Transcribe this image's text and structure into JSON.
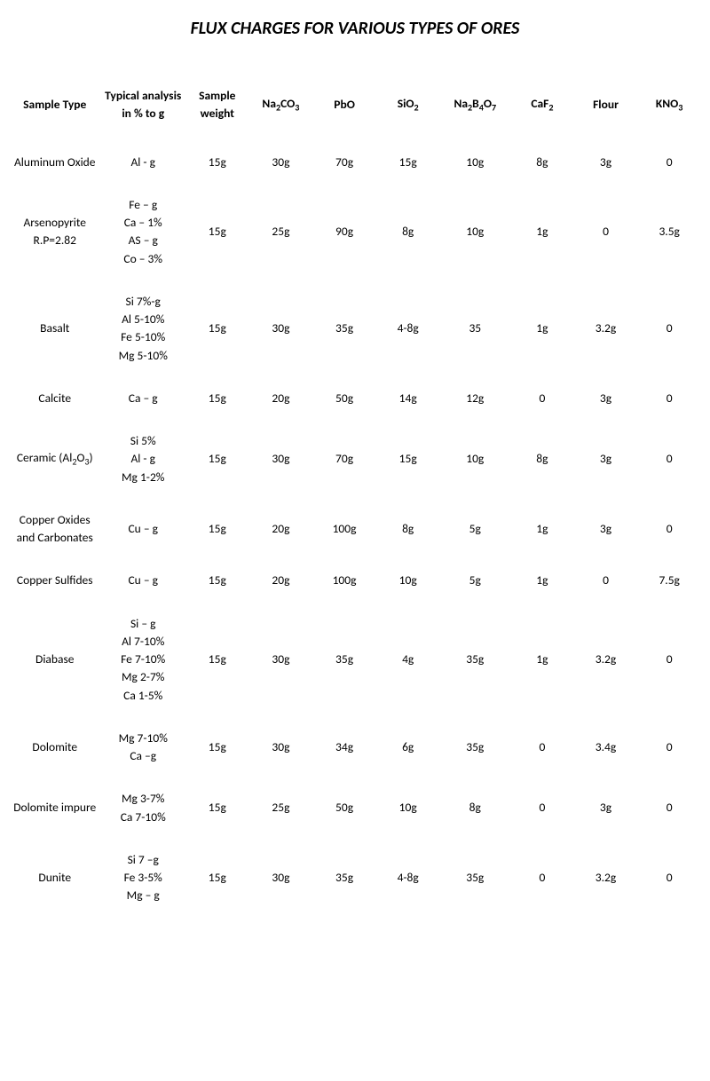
{
  "title": "FLUX CHARGES FOR VARIOUS TYPES OF ORES",
  "columns": [
    {
      "key": "sample_type",
      "label": "Sample Type",
      "class": "col-sample"
    },
    {
      "key": "analysis",
      "label": "Typical analysis in % to g",
      "class": "col-analysis"
    },
    {
      "key": "weight",
      "label": "Sample weight",
      "class": "col-weight"
    },
    {
      "key": "na2co3",
      "label": "Na<sub>2</sub>CO<sub>3</sub>",
      "class": "col-comp"
    },
    {
      "key": "pbo",
      "label": "PbO",
      "class": "col-comp"
    },
    {
      "key": "sio2",
      "label": "SiO<sub>2</sub>",
      "class": "col-comp"
    },
    {
      "key": "na2b4o7",
      "label": "Na<sub>2</sub>B<sub>4</sub>O<sub>7</sub>",
      "class": "col-comp-wide"
    },
    {
      "key": "caf2",
      "label": "CaF<sub>2</sub>",
      "class": "col-comp"
    },
    {
      "key": "flour",
      "label": "Flour",
      "class": "col-comp"
    },
    {
      "key": "kno3",
      "label": "KNO<sub>3</sub>",
      "class": "col-comp"
    }
  ],
  "rows": [
    {
      "sample_type": "Aluminum Oxide",
      "analysis": [
        "Al - g"
      ],
      "weight": "15g",
      "na2co3": "30g",
      "pbo": "70g",
      "sio2": "15g",
      "na2b4o7": "10g",
      "caf2": "8g",
      "flour": "3g",
      "kno3": "0"
    },
    {
      "sample_type": "Arsenopyrite R.P=2.82",
      "analysis": [
        "Fe – g",
        "Ca – 1%",
        "AS – g",
        "Co – 3%"
      ],
      "weight": "15g",
      "na2co3": "25g",
      "pbo": "90g",
      "sio2": "8g",
      "na2b4o7": "10g",
      "caf2": "1g",
      "flour": "0",
      "kno3": "3.5g"
    },
    {
      "sample_type": "Basalt",
      "analysis": [
        "Si  7%-g",
        "Al  5-10%",
        "Fe 5-10%",
        "Mg 5-10%"
      ],
      "weight": "15g",
      "na2co3": "30g",
      "pbo": "35g",
      "sio2": "4-8g",
      "na2b4o7": "35",
      "caf2": "1g",
      "flour": "3.2g",
      "kno3": "0"
    },
    {
      "sample_type": "Calcite",
      "analysis": [
        "Ca – g"
      ],
      "weight": "15g",
      "na2co3": "20g",
      "pbo": "50g",
      "sio2": "14g",
      "na2b4o7": "12g",
      "caf2": "0",
      "flour": "3g",
      "kno3": "0"
    },
    {
      "sample_type": "Ceramic (Al<sub>2</sub>O<sub>3</sub>)",
      "analysis": [
        "Si  5%",
        "Al - g",
        "Mg 1-2%"
      ],
      "weight": "15g",
      "na2co3": "30g",
      "pbo": "70g",
      "sio2": "15g",
      "na2b4o7": "10g",
      "caf2": "8g",
      "flour": "3g",
      "kno3": "0"
    },
    {
      "sample_type": "Copper Oxides and Carbonates",
      "analysis": [
        "Cu – g"
      ],
      "weight": "15g",
      "na2co3": "20g",
      "pbo": "100g",
      "sio2": "8g",
      "na2b4o7": "5g",
      "caf2": "1g",
      "flour": "3g",
      "kno3": "0"
    },
    {
      "sample_type": "Copper Sulfides",
      "analysis": [
        "Cu – g"
      ],
      "weight": "15g",
      "na2co3": "20g",
      "pbo": "100g",
      "sio2": "10g",
      "na2b4o7": "5g",
      "caf2": "1g",
      "flour": "0",
      "kno3": "7.5g"
    },
    {
      "sample_type": "Diabase",
      "analysis": [
        "Si – g",
        "Al 7-10%",
        "Fe 7-10%",
        "Mg 2-7%",
        "Ca  1-5%"
      ],
      "weight": "15g",
      "na2co3": "30g",
      "pbo": "35g",
      "sio2": "4g",
      "na2b4o7": "35g",
      "caf2": "1g",
      "flour": "3.2g",
      "kno3": "0"
    },
    {
      "sample_type": "Dolomite",
      "analysis": [
        "Mg 7-10%",
        "Ca –g"
      ],
      "weight": "15g",
      "na2co3": "30g",
      "pbo": "34g",
      "sio2": "6g",
      "na2b4o7": "35g",
      "caf2": "0",
      "flour": "3.4g",
      "kno3": "0"
    },
    {
      "sample_type": "Dolomite impure",
      "analysis": [
        "Mg 3-7%",
        "Ca 7-10%"
      ],
      "weight": "15g",
      "na2co3": "25g",
      "pbo": "50g",
      "sio2": "10g",
      "na2b4o7": "8g",
      "caf2": "0",
      "flour": "3g",
      "kno3": "0"
    },
    {
      "sample_type": "Dunite",
      "analysis": [
        "Si 7 –g",
        "Fe 3-5%",
        "Mg – g"
      ],
      "weight": "15g",
      "na2co3": "30g",
      "pbo": "35g",
      "sio2": "4-8g",
      "na2b4o7": "35g",
      "caf2": "0",
      "flour": "3.2g",
      "kno3": "0"
    }
  ]
}
